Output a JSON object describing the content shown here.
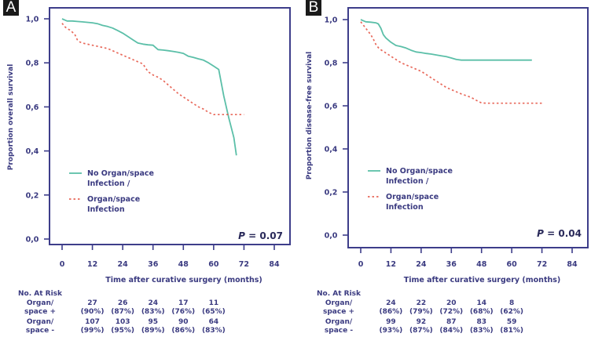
{
  "chart_data": [
    {
      "panel": "A",
      "type": "line",
      "title": "",
      "xlabel": "Time after curative surgery (months)",
      "ylabel": "Proportion overall survival",
      "xlim": [
        0,
        84
      ],
      "ylim": [
        0,
        1
      ],
      "x_ticks": [
        "0",
        "12",
        "24",
        "36",
        "48",
        "60",
        "72",
        "84"
      ],
      "y_ticks": [
        "0,0",
        "0,2",
        "0,4",
        "0,6",
        "0,8",
        "1,0"
      ],
      "legend_position": "center-left",
      "annotation": "P = 0.07",
      "series": [
        {
          "name": "No Organ/space Infection /",
          "style": "solid",
          "color": "#5bbfa8",
          "x": [
            0,
            1,
            2,
            4,
            6,
            8,
            10,
            12,
            14,
            16,
            18,
            20,
            22,
            24,
            26,
            28,
            30,
            32,
            34,
            36,
            38,
            40,
            42,
            44,
            46,
            48,
            50,
            52,
            54,
            56,
            58,
            60,
            62,
            64,
            66,
            68,
            69
          ],
          "y": [
            1.0,
            0.995,
            0.99,
            0.99,
            0.988,
            0.986,
            0.984,
            0.982,
            0.978,
            0.97,
            0.965,
            0.958,
            0.947,
            0.935,
            0.92,
            0.905,
            0.89,
            0.885,
            0.882,
            0.88,
            0.86,
            0.858,
            0.855,
            0.852,
            0.848,
            0.843,
            0.83,
            0.825,
            0.818,
            0.812,
            0.8,
            0.785,
            0.77,
            0.65,
            0.55,
            0.46,
            0.38
          ]
        },
        {
          "name": "Organ/space Infection",
          "style": "dashed",
          "color": "#e8685a",
          "x": [
            0,
            1,
            2,
            3,
            4,
            5,
            6,
            7,
            8,
            10,
            12,
            14,
            16,
            18,
            20,
            22,
            24,
            26,
            28,
            30,
            32,
            34,
            36,
            38,
            40,
            42,
            44,
            46,
            48,
            50,
            52,
            54,
            56,
            58,
            60,
            62,
            64,
            66,
            68,
            70,
            72
          ],
          "y": [
            0.98,
            0.965,
            0.955,
            0.95,
            0.94,
            0.93,
            0.905,
            0.895,
            0.89,
            0.885,
            0.88,
            0.875,
            0.87,
            0.865,
            0.855,
            0.845,
            0.835,
            0.825,
            0.815,
            0.805,
            0.795,
            0.76,
            0.745,
            0.735,
            0.72,
            0.7,
            0.68,
            0.66,
            0.645,
            0.63,
            0.615,
            0.6,
            0.59,
            0.575,
            0.565,
            0.565,
            0.565,
            0.565,
            0.565,
            0.565,
            0.565
          ]
        }
      ],
      "at_risk": {
        "header": "No. At Risk",
        "times": [
          12,
          24,
          36,
          48,
          60
        ],
        "rows": [
          {
            "label_line1": "Organ/",
            "label_line2": "space +",
            "counts": [
              "27",
              "26",
              "24",
              "17",
              "11"
            ],
            "percents": [
              "(90%)",
              "(87%)",
              "(83%)",
              "(76%)",
              "(65%)"
            ]
          },
          {
            "label_line1": "Organ/",
            "label_line2": "space -",
            "counts": [
              "107",
              "103",
              "95",
              "90",
              "64"
            ],
            "percents": [
              "(99%)",
              "(95%)",
              "(89%)",
              "(86%)",
              "(83%)"
            ]
          }
        ]
      }
    },
    {
      "panel": "B",
      "type": "line",
      "title": "",
      "xlabel": "Time after curative surgery (months)",
      "ylabel": "Proportion disease-free survival",
      "xlim": [
        0,
        84
      ],
      "ylim": [
        0,
        1
      ],
      "x_ticks": [
        "0",
        "12",
        "24",
        "36",
        "48",
        "60",
        "72",
        "84"
      ],
      "y_ticks": [
        "0,0",
        "0,2",
        "0,4",
        "0,6",
        "0,8",
        "1,0"
      ],
      "legend_position": "center-left",
      "annotation": "P = 0.04",
      "series": [
        {
          "name": "No Organ/space Infection /",
          "style": "solid",
          "color": "#5bbfa8",
          "x": [
            0,
            1,
            2,
            4,
            6,
            7,
            8,
            9,
            10,
            12,
            14,
            16,
            18,
            20,
            22,
            24,
            26,
            28,
            30,
            32,
            34,
            36,
            38,
            40,
            42,
            44,
            48,
            52,
            56,
            60,
            64,
            68
          ],
          "y": [
            1.0,
            0.995,
            0.99,
            0.988,
            0.985,
            0.98,
            0.96,
            0.93,
            0.915,
            0.895,
            0.88,
            0.875,
            0.868,
            0.858,
            0.85,
            0.847,
            0.843,
            0.84,
            0.836,
            0.832,
            0.828,
            0.822,
            0.815,
            0.812,
            0.812,
            0.812,
            0.812,
            0.812,
            0.812,
            0.812,
            0.812,
            0.812
          ]
        },
        {
          "name": "Organ/space Infection",
          "style": "dashed",
          "color": "#e8685a",
          "x": [
            0,
            1,
            2,
            3,
            4,
            5,
            6,
            7,
            8,
            10,
            12,
            14,
            16,
            18,
            20,
            22,
            24,
            26,
            28,
            30,
            32,
            34,
            36,
            38,
            40,
            42,
            44,
            46,
            48,
            50,
            52,
            56,
            60,
            64,
            68,
            72
          ],
          "y": [
            0.99,
            0.975,
            0.96,
            0.945,
            0.93,
            0.91,
            0.885,
            0.87,
            0.86,
            0.845,
            0.83,
            0.815,
            0.8,
            0.79,
            0.78,
            0.77,
            0.76,
            0.745,
            0.73,
            0.715,
            0.7,
            0.685,
            0.675,
            0.665,
            0.655,
            0.647,
            0.638,
            0.625,
            0.613,
            0.612,
            0.612,
            0.612,
            0.612,
            0.612,
            0.612,
            0.612
          ]
        }
      ],
      "at_risk": {
        "header": "No. At Risk",
        "times": [
          12,
          24,
          36,
          48,
          60
        ],
        "rows": [
          {
            "label_line1": "Organ/",
            "label_line2": "space +",
            "counts": [
              "24",
              "22",
              "20",
              "14",
              "8"
            ],
            "percents": [
              "(86%)",
              "(79%)",
              "(72%)",
              "(68%)",
              "(62%)"
            ]
          },
          {
            "label_line1": "Organ/",
            "label_line2": "space -",
            "counts": [
              "99",
              "92",
              "87",
              "83",
              "59"
            ],
            "percents": [
              "(93%)",
              "(87%)",
              "(84%)",
              "(83%)",
              "(81%)"
            ]
          }
        ]
      }
    }
  ],
  "panels": {
    "A": {
      "letter": "A"
    },
    "B": {
      "letter": "B"
    }
  },
  "legend": {
    "solid_line1": "No Organ/space",
    "solid_line2": "Infection /",
    "dashed_line1": "Organ/space",
    "dashed_line2": "Infection"
  },
  "colors": {
    "axis": "#3d3d8a",
    "text": "#3a3a80",
    "no_infection": "#5bbfa8",
    "infection": "#e8685a"
  }
}
